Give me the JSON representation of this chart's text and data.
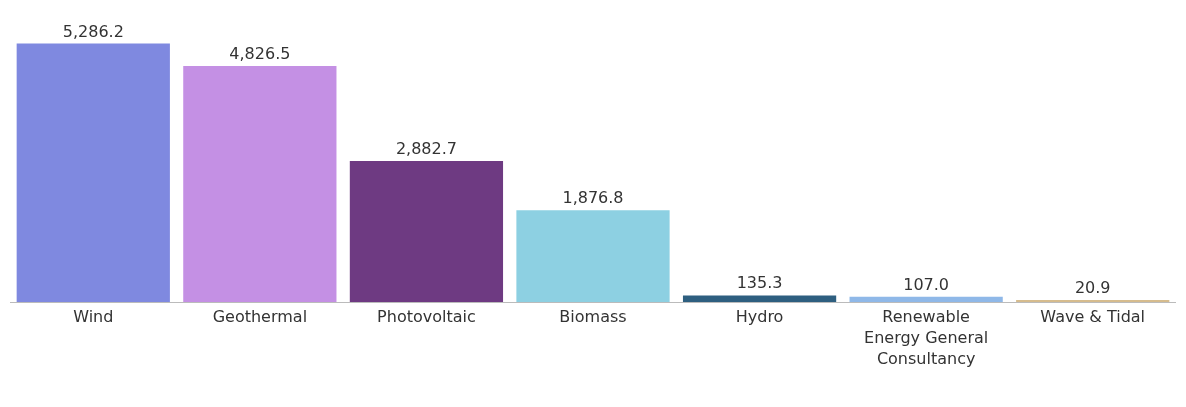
{
  "chart_data": {
    "type": "bar",
    "categories": [
      "Wind",
      "Geothermal",
      "Photovoltaic",
      "Biomass",
      "Hydro",
      "Renewable Energy General Consultancy",
      "Wave & Tidal"
    ],
    "values": [
      5286.2,
      4826.5,
      2882.7,
      1876.8,
      135.3,
      107.0,
      20.9
    ],
    "colors": [
      "#7f89e0",
      "#c490e4",
      "#6e3a82",
      "#8dd0e2",
      "#2e5f80",
      "#8fb8e8",
      "#d6bc8e"
    ],
    "value_labels": [
      "5,286.2",
      "4,826.5",
      "2,882.7",
      "1,876.8",
      "135.3",
      "107.0",
      "20.9"
    ],
    "data_labels": true
  }
}
